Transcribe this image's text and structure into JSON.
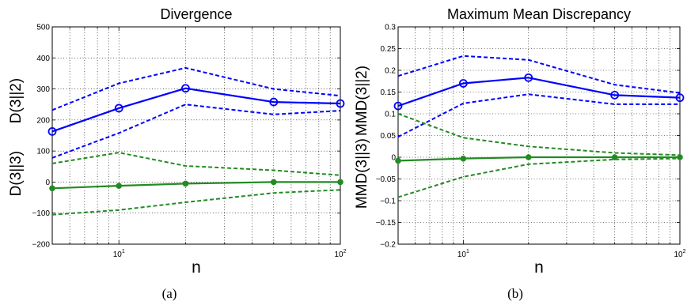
{
  "chart_data": [
    {
      "type": "line",
      "title": "Divergence",
      "xlabel": "n",
      "ylabels": [
        "D(3||2)",
        "D(3||3)"
      ],
      "caption": "(a)",
      "x": [
        5,
        10,
        20,
        50,
        100
      ],
      "xscale": "log",
      "xlim": [
        5,
        100
      ],
      "xticks": [
        {
          "value": 10,
          "base": "10",
          "exp": "1"
        },
        {
          "value": 100,
          "base": "10",
          "exp": "2"
        }
      ],
      "ylim": [
        -200,
        500
      ],
      "yticks": [
        -200,
        -100,
        0,
        100,
        200,
        300,
        400,
        500
      ],
      "yticklabels": [
        "−200",
        "−100",
        "0",
        "100",
        "200",
        "300",
        "400",
        "500"
      ],
      "grid": true,
      "series": [
        {
          "values": [
            163,
            238,
            302,
            258,
            253
          ],
          "color": "#0000ff",
          "style": "solid",
          "marker": "circle-open"
        },
        {
          "values": [
            232,
            318,
            368,
            300,
            278
          ],
          "color": "#0000ff",
          "style": "dashed"
        },
        {
          "values": [
            78,
            158,
            250,
            218,
            230
          ],
          "color": "#0000ff",
          "style": "dashed"
        },
        {
          "values": [
            -20,
            -12,
            -5,
            0,
            0
          ],
          "color": "#228b22",
          "style": "solid",
          "marker": "dot-filled"
        },
        {
          "values": [
            60,
            95,
            52,
            38,
            22
          ],
          "color": "#228b22",
          "style": "dashed"
        },
        {
          "values": [
            -105,
            -90,
            -65,
            -35,
            -25
          ],
          "color": "#228b22",
          "style": "dashed"
        }
      ]
    },
    {
      "type": "line",
      "title": "Maximum Mean Discrepancy",
      "xlabel": "n",
      "ylabels": [
        "MMD(3||2)",
        "MMD(3||3)"
      ],
      "caption": "(b)",
      "x": [
        5,
        10,
        20,
        50,
        100
      ],
      "xscale": "log",
      "xlim": [
        5,
        100
      ],
      "xticks": [
        {
          "value": 10,
          "base": "10",
          "exp": "1"
        },
        {
          "value": 100,
          "base": "10",
          "exp": "2"
        }
      ],
      "ylim": [
        -0.2,
        0.3
      ],
      "yticks": [
        -0.2,
        -0.15,
        -0.1,
        -0.05,
        0,
        0.05,
        0.1,
        0.15,
        0.2,
        0.25,
        0.3
      ],
      "yticklabels": [
        "−0.2",
        "−0.15",
        "−0.1",
        "−0.05",
        "0",
        "0.05",
        "0.1",
        "0.15",
        "0.2",
        "0.25",
        "0.3"
      ],
      "grid": true,
      "series": [
        {
          "values": [
            0.118,
            0.17,
            0.183,
            0.143,
            0.137
          ],
          "color": "#0000ff",
          "style": "solid",
          "marker": "circle-open"
        },
        {
          "values": [
            0.187,
            0.233,
            0.224,
            0.167,
            0.148
          ],
          "color": "#0000ff",
          "style": "dashed"
        },
        {
          "values": [
            0.047,
            0.124,
            0.145,
            0.122,
            0.122
          ],
          "color": "#0000ff",
          "style": "dashed"
        },
        {
          "values": [
            -0.008,
            -0.003,
            0.0,
            0.0,
            0.0
          ],
          "color": "#228b22",
          "style": "solid",
          "marker": "dot-filled"
        },
        {
          "values": [
            0.1,
            0.045,
            0.025,
            0.01,
            0.005
          ],
          "color": "#228b22",
          "style": "dashed"
        },
        {
          "values": [
            -0.092,
            -0.045,
            -0.016,
            -0.005,
            -0.003
          ],
          "color": "#228b22",
          "style": "dashed"
        }
      ]
    }
  ]
}
